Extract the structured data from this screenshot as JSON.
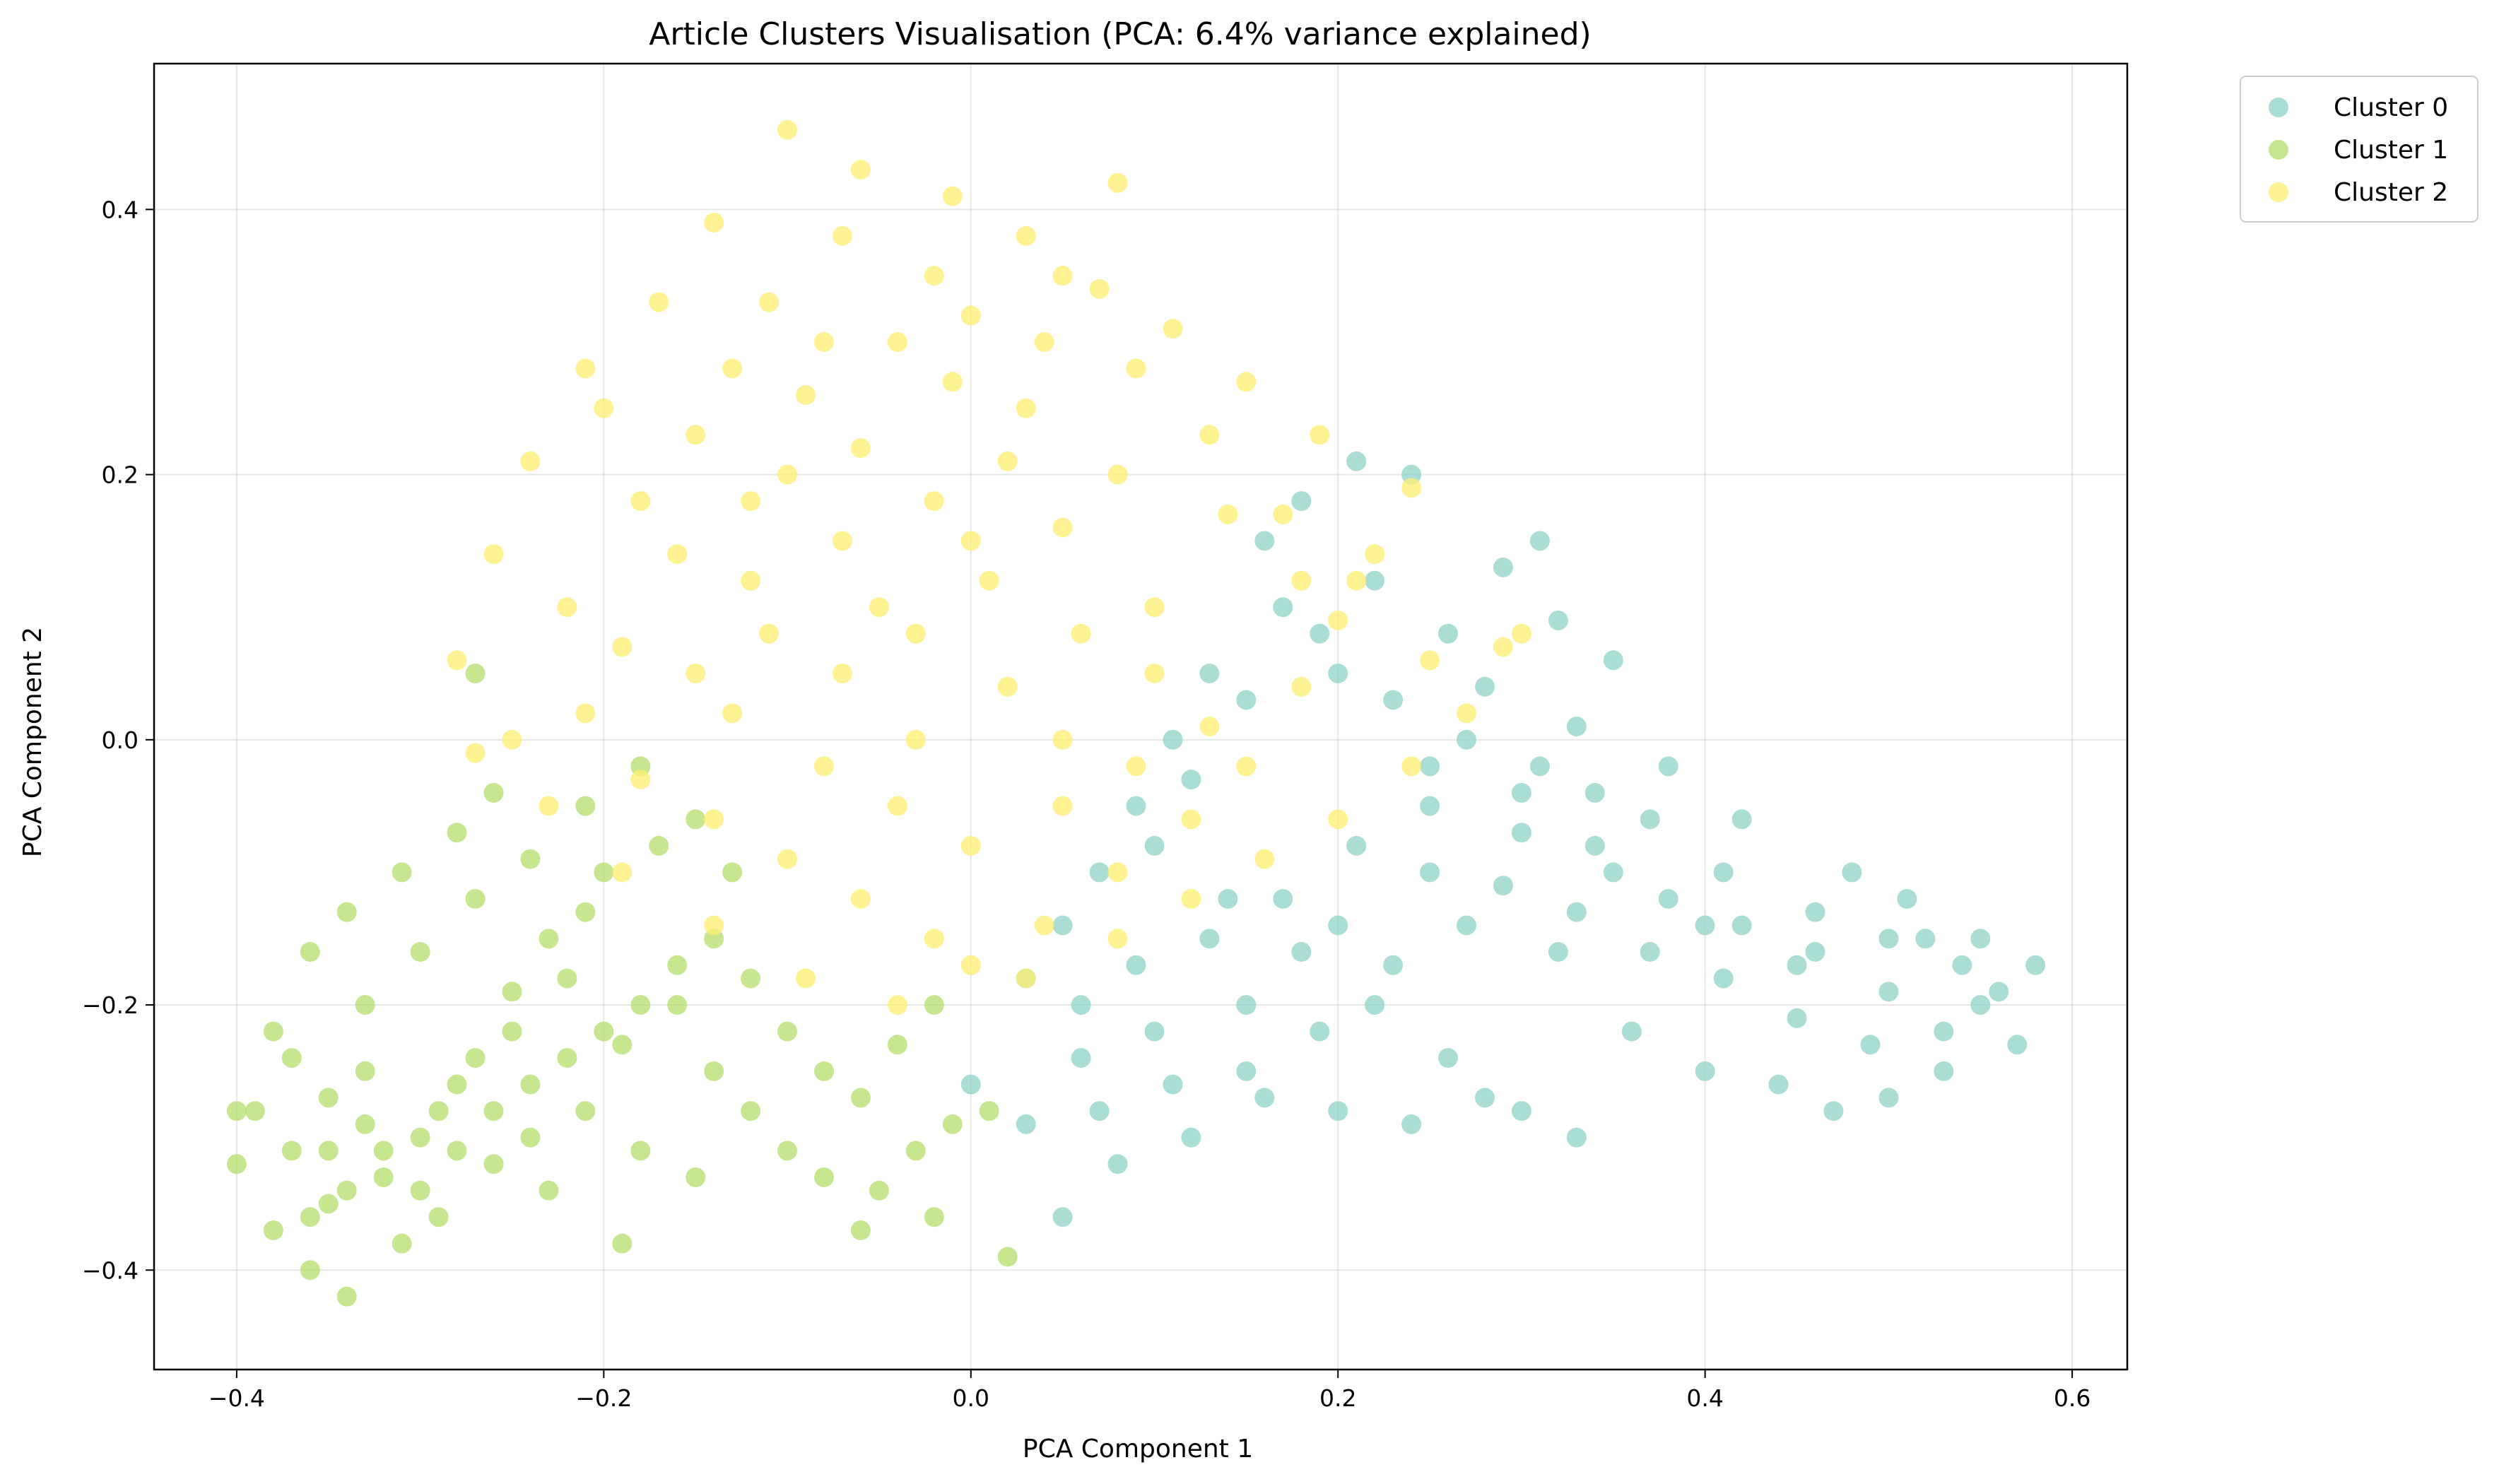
{
  "chart_data": {
    "type": "scatter",
    "title": "Article Clusters Visualisation (PCA: 6.4% variance explained)",
    "xlabel": "PCA Component 1",
    "ylabel": "PCA Component 2",
    "xlim": [
      -0.445,
      0.63
    ],
    "ylim": [
      -0.475,
      0.51
    ],
    "xticks": [
      -0.4,
      -0.2,
      0.0,
      0.2,
      0.4,
      0.6
    ],
    "yticks": [
      -0.4,
      -0.2,
      0.0,
      0.2,
      0.4
    ],
    "xtick_labels": [
      "−0.4",
      "−0.2",
      "0.0",
      "0.2",
      "0.4",
      "0.6"
    ],
    "ytick_labels": [
      "−0.4",
      "−0.2",
      "0.0",
      "0.2",
      "0.4"
    ],
    "grid": true,
    "legend_position": "outside-top-right",
    "series": [
      {
        "name": "Cluster 0",
        "color": "#8dd3c7",
        "points": [
          [
            0.3,
            -0.07
          ],
          [
            0.25,
            -0.02
          ],
          [
            0.35,
            -0.1
          ],
          [
            0.4,
            -0.14
          ],
          [
            0.45,
            -0.17
          ],
          [
            0.5,
            -0.19
          ],
          [
            0.55,
            -0.2
          ],
          [
            0.58,
            -0.17
          ],
          [
            0.57,
            -0.23
          ],
          [
            0.52,
            -0.15
          ],
          [
            0.48,
            -0.1
          ],
          [
            0.42,
            -0.06
          ],
          [
            0.38,
            -0.02
          ],
          [
            0.33,
            0.01
          ],
          [
            0.28,
            0.04
          ],
          [
            0.26,
            0.08
          ],
          [
            0.29,
            0.13
          ],
          [
            0.31,
            0.15
          ],
          [
            0.24,
            0.2
          ],
          [
            0.21,
            0.21
          ],
          [
            0.18,
            0.18
          ],
          [
            0.22,
            0.12
          ],
          [
            0.19,
            0.08
          ],
          [
            0.15,
            0.03
          ],
          [
            0.12,
            -0.03
          ],
          [
            0.1,
            -0.08
          ],
          [
            0.14,
            -0.12
          ],
          [
            0.18,
            -0.16
          ],
          [
            0.22,
            -0.2
          ],
          [
            0.26,
            -0.24
          ],
          [
            0.3,
            -0.28
          ],
          [
            0.33,
            -0.3
          ],
          [
            0.28,
            -0.27
          ],
          [
            0.24,
            -0.29
          ],
          [
            0.2,
            -0.28
          ],
          [
            0.16,
            -0.27
          ],
          [
            0.12,
            -0.3
          ],
          [
            0.08,
            -0.32
          ],
          [
            0.05,
            -0.36
          ],
          [
            0.03,
            -0.29
          ],
          [
            0.0,
            -0.26
          ],
          [
            0.06,
            -0.24
          ],
          [
            0.1,
            -0.22
          ],
          [
            0.15,
            -0.2
          ],
          [
            0.2,
            -0.14
          ],
          [
            0.25,
            -0.1
          ],
          [
            0.32,
            -0.16
          ],
          [
            0.36,
            -0.22
          ],
          [
            0.4,
            -0.25
          ],
          [
            0.44,
            -0.26
          ],
          [
            0.47,
            -0.28
          ],
          [
            0.5,
            -0.27
          ],
          [
            0.53,
            -0.22
          ],
          [
            0.55,
            -0.15
          ],
          [
            0.51,
            -0.12
          ],
          [
            0.46,
            -0.13
          ],
          [
            0.41,
            -0.1
          ],
          [
            0.37,
            -0.06
          ],
          [
            0.34,
            -0.04
          ],
          [
            0.31,
            -0.02
          ],
          [
            0.27,
            0.0
          ],
          [
            0.23,
            0.03
          ],
          [
            0.2,
            0.05
          ],
          [
            0.17,
            0.1
          ],
          [
            0.16,
            0.15
          ],
          [
            0.13,
            0.05
          ],
          [
            0.11,
            0.0
          ],
          [
            0.09,
            -0.05
          ],
          [
            0.07,
            -0.1
          ],
          [
            0.05,
            -0.14
          ],
          [
            0.03,
            -0.18
          ],
          [
            0.06,
            -0.2
          ],
          [
            0.09,
            -0.17
          ],
          [
            0.13,
            -0.15
          ],
          [
            0.17,
            -0.12
          ],
          [
            0.21,
            -0.08
          ],
          [
            0.25,
            -0.05
          ],
          [
            0.29,
            -0.11
          ],
          [
            0.33,
            -0.13
          ],
          [
            0.37,
            -0.16
          ],
          [
            0.41,
            -0.18
          ],
          [
            0.45,
            -0.21
          ],
          [
            0.49,
            -0.23
          ],
          [
            0.53,
            -0.25
          ],
          [
            0.56,
            -0.19
          ],
          [
            0.54,
            -0.17
          ],
          [
            0.5,
            -0.15
          ],
          [
            0.46,
            -0.16
          ],
          [
            0.42,
            -0.14
          ],
          [
            0.38,
            -0.12
          ],
          [
            0.34,
            -0.08
          ],
          [
            0.3,
            -0.04
          ],
          [
            0.27,
            -0.14
          ],
          [
            0.23,
            -0.17
          ],
          [
            0.19,
            -0.22
          ],
          [
            0.15,
            -0.25
          ],
          [
            0.11,
            -0.26
          ],
          [
            0.07,
            -0.28
          ],
          [
            0.35,
            0.06
          ],
          [
            0.32,
            0.09
          ]
        ]
      },
      {
        "name": "Cluster 1",
        "color": "#b3de69",
        "points": [
          [
            -0.3,
            -0.3
          ],
          [
            -0.35,
            -0.35
          ],
          [
            -0.28,
            -0.26
          ],
          [
            -0.25,
            -0.22
          ],
          [
            -0.32,
            -0.33
          ],
          [
            -0.38,
            -0.37
          ],
          [
            -0.36,
            -0.4
          ],
          [
            -0.34,
            -0.42
          ],
          [
            -0.39,
            -0.28
          ],
          [
            -0.37,
            -0.24
          ],
          [
            -0.33,
            -0.2
          ],
          [
            -0.3,
            -0.16
          ],
          [
            -0.27,
            -0.12
          ],
          [
            -0.24,
            -0.09
          ],
          [
            -0.21,
            -0.05
          ],
          [
            -0.18,
            -0.02
          ],
          [
            -0.2,
            -0.1
          ],
          [
            -0.22,
            -0.18
          ],
          [
            -0.19,
            -0.23
          ],
          [
            -0.16,
            -0.2
          ],
          [
            -0.14,
            -0.25
          ],
          [
            -0.12,
            -0.28
          ],
          [
            -0.1,
            -0.31
          ],
          [
            -0.08,
            -0.33
          ],
          [
            -0.05,
            -0.34
          ],
          [
            -0.03,
            -0.31
          ],
          [
            -0.01,
            -0.29
          ],
          [
            0.01,
            -0.28
          ],
          [
            0.02,
            -0.39
          ],
          [
            -0.02,
            -0.36
          ],
          [
            -0.06,
            -0.37
          ],
          [
            -0.19,
            -0.38
          ],
          [
            -0.23,
            -0.34
          ],
          [
            -0.26,
            -0.32
          ],
          [
            -0.29,
            -0.36
          ],
          [
            -0.31,
            -0.38
          ],
          [
            -0.33,
            -0.29
          ],
          [
            -0.35,
            -0.27
          ],
          [
            -0.37,
            -0.31
          ],
          [
            -0.4,
            -0.32
          ],
          [
            -0.4,
            -0.28
          ],
          [
            -0.38,
            -0.22
          ],
          [
            -0.36,
            -0.16
          ],
          [
            -0.34,
            -0.13
          ],
          [
            -0.31,
            -0.1
          ],
          [
            -0.28,
            -0.07
          ],
          [
            -0.26,
            -0.04
          ],
          [
            -0.27,
            0.05
          ],
          [
            -0.23,
            -0.15
          ],
          [
            -0.25,
            -0.19
          ],
          [
            -0.27,
            -0.24
          ],
          [
            -0.29,
            -0.28
          ],
          [
            -0.32,
            -0.31
          ],
          [
            -0.34,
            -0.34
          ],
          [
            -0.36,
            -0.36
          ],
          [
            -0.3,
            -0.34
          ],
          [
            -0.28,
            -0.31
          ],
          [
            -0.26,
            -0.28
          ],
          [
            -0.24,
            -0.26
          ],
          [
            -0.22,
            -0.24
          ],
          [
            -0.2,
            -0.22
          ],
          [
            -0.18,
            -0.2
          ],
          [
            -0.16,
            -0.17
          ],
          [
            -0.14,
            -0.15
          ],
          [
            -0.12,
            -0.18
          ],
          [
            -0.1,
            -0.22
          ],
          [
            -0.08,
            -0.25
          ],
          [
            -0.06,
            -0.27
          ],
          [
            -0.04,
            -0.23
          ],
          [
            -0.02,
            -0.2
          ],
          [
            -0.13,
            -0.1
          ],
          [
            -0.15,
            -0.06
          ],
          [
            -0.17,
            -0.08
          ],
          [
            -0.21,
            -0.13
          ],
          [
            -0.24,
            -0.3
          ],
          [
            -0.21,
            -0.28
          ],
          [
            -0.18,
            -0.31
          ],
          [
            -0.15,
            -0.33
          ],
          [
            -0.33,
            -0.25
          ],
          [
            -0.35,
            -0.31
          ]
        ]
      },
      {
        "name": "Cluster 2",
        "color": "#ffed6f",
        "points": [
          [
            -0.05,
            0.1
          ],
          [
            0.0,
            0.15
          ],
          [
            -0.1,
            0.2
          ],
          [
            -0.15,
            0.05
          ],
          [
            0.05,
            0.0
          ],
          [
            0.1,
            0.05
          ],
          [
            -0.08,
            0.3
          ],
          [
            -0.02,
            0.35
          ],
          [
            0.03,
            0.25
          ],
          [
            0.08,
            0.2
          ],
          [
            -0.12,
            0.12
          ],
          [
            -0.18,
            0.18
          ],
          [
            -0.2,
            0.25
          ],
          [
            -0.22,
            0.1
          ],
          [
            -0.25,
            0.0
          ],
          [
            -0.23,
            -0.05
          ],
          [
            -0.19,
            -0.1
          ],
          [
            -0.14,
            -0.14
          ],
          [
            -0.09,
            -0.18
          ],
          [
            -0.04,
            -0.2
          ],
          [
            0.0,
            -0.17
          ],
          [
            0.04,
            -0.14
          ],
          [
            0.08,
            -0.1
          ],
          [
            0.12,
            -0.06
          ],
          [
            0.15,
            -0.02
          ],
          [
            0.18,
            0.04
          ],
          [
            0.2,
            0.09
          ],
          [
            0.22,
            0.14
          ],
          [
            0.24,
            0.19
          ],
          [
            0.19,
            0.23
          ],
          [
            0.15,
            0.27
          ],
          [
            0.11,
            0.31
          ],
          [
            0.07,
            0.34
          ],
          [
            0.03,
            0.38
          ],
          [
            -0.01,
            0.41
          ],
          [
            -0.06,
            0.43
          ],
          [
            -0.1,
            0.46
          ],
          [
            -0.14,
            0.39
          ],
          [
            -0.17,
            0.33
          ],
          [
            -0.21,
            0.28
          ],
          [
            -0.24,
            0.21
          ],
          [
            -0.26,
            0.14
          ],
          [
            -0.28,
            0.06
          ],
          [
            -0.27,
            -0.01
          ],
          [
            -0.07,
            0.05
          ],
          [
            -0.03,
            0.08
          ],
          [
            0.01,
            0.12
          ],
          [
            0.05,
            0.16
          ],
          [
            -0.11,
            0.08
          ],
          [
            -0.16,
            0.14
          ],
          [
            -0.06,
            0.22
          ],
          [
            -0.01,
            0.27
          ],
          [
            0.04,
            0.3
          ],
          [
            0.09,
            0.28
          ],
          [
            0.13,
            0.23
          ],
          [
            0.17,
            0.17
          ],
          [
            0.21,
            0.12
          ],
          [
            0.25,
            0.06
          ],
          [
            0.27,
            0.02
          ],
          [
            0.29,
            0.07
          ],
          [
            0.24,
            -0.02
          ],
          [
            0.2,
            -0.06
          ],
          [
            0.16,
            -0.09
          ],
          [
            0.12,
            -0.12
          ],
          [
            0.08,
            -0.15
          ],
          [
            0.03,
            -0.18
          ],
          [
            -0.02,
            -0.15
          ],
          [
            -0.06,
            -0.12
          ],
          [
            -0.1,
            -0.09
          ],
          [
            -0.14,
            -0.06
          ],
          [
            -0.18,
            -0.03
          ],
          [
            -0.21,
            0.02
          ],
          [
            -0.19,
            0.07
          ],
          [
            -0.13,
            0.02
          ],
          [
            -0.08,
            -0.02
          ],
          [
            -0.04,
            -0.05
          ],
          [
            0.0,
            -0.08
          ],
          [
            0.05,
            -0.05
          ],
          [
            0.09,
            -0.02
          ],
          [
            0.13,
            0.01
          ],
          [
            0.1,
            0.1
          ],
          [
            0.06,
            0.08
          ],
          [
            0.02,
            0.04
          ],
          [
            -0.03,
            0.0
          ],
          [
            -0.07,
            0.15
          ],
          [
            -0.12,
            0.18
          ],
          [
            -0.15,
            0.23
          ],
          [
            -0.09,
            0.26
          ],
          [
            -0.04,
            0.3
          ],
          [
            0.0,
            0.32
          ],
          [
            0.05,
            0.35
          ],
          [
            0.02,
            0.21
          ],
          [
            -0.02,
            0.18
          ],
          [
            -0.11,
            0.33
          ],
          [
            -0.07,
            0.38
          ],
          [
            -0.13,
            0.28
          ],
          [
            0.14,
            0.17
          ],
          [
            0.18,
            0.12
          ],
          [
            0.3,
            0.08
          ],
          [
            0.08,
            0.42
          ]
        ]
      }
    ]
  }
}
